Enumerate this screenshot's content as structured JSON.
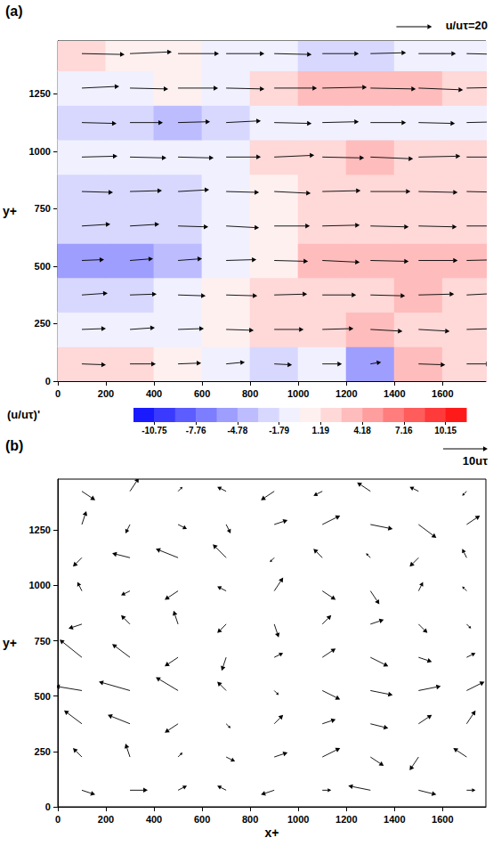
{
  "chart_data": [
    {
      "type": "quiver",
      "title": "(a)",
      "ylabel": "y+",
      "xlim": [
        0,
        1780
      ],
      "ylim": [
        0,
        1480
      ],
      "xticks": [
        0,
        200,
        400,
        600,
        800,
        1000,
        1200,
        1400,
        1600
      ],
      "yticks": [
        0,
        250,
        500,
        750,
        1000,
        1250
      ],
      "x": [
        100,
        300,
        500,
        700,
        900,
        1100,
        1300,
        1500,
        1700
      ],
      "y": [
        75,
        225,
        375,
        525,
        675,
        825,
        975,
        1125,
        1275,
        1425
      ],
      "u": [
        [
          13.5,
          14.5,
          13,
          10.5,
          10,
          11,
          6,
          15,
          13.5
        ],
        [
          13.5,
          14,
          14.5,
          15.5,
          16.5,
          17.5,
          18,
          17.5,
          16.5
        ],
        [
          14.5,
          15,
          15.5,
          17.5,
          18.5,
          19,
          19.5,
          20,
          19.5
        ],
        [
          12.5,
          13,
          13.5,
          17,
          19,
          21,
          21.5,
          22,
          21.5
        ],
        [
          16,
          16.5,
          17,
          18.5,
          20,
          21,
          21.5,
          21.5,
          21
        ],
        [
          17.5,
          18,
          17.5,
          18.5,
          20.5,
          21.5,
          22.5,
          22,
          21.5
        ],
        [
          20,
          20.5,
          20,
          19.5,
          22.5,
          23.5,
          24,
          23.5,
          23
        ],
        [
          19.5,
          18.5,
          18,
          19.5,
          21,
          20.5,
          20,
          20.5,
          21
        ],
        [
          21,
          21.5,
          22.5,
          21.5,
          24,
          25,
          25.5,
          25,
          24.5
        ],
        [
          24,
          23.5,
          23,
          21.5,
          21,
          20.5,
          20,
          21,
          21.5
        ]
      ],
      "v": [
        [
          -0.5,
          0,
          0.5,
          1,
          -0.5,
          0,
          1,
          -0.5,
          0
        ],
        [
          0.5,
          1,
          0.5,
          -0.5,
          0,
          0.5,
          -1,
          -1,
          0.5
        ],
        [
          1,
          0.5,
          -0.5,
          -0.5,
          0.5,
          0,
          -0.5,
          0.5,
          1
        ],
        [
          0.5,
          1,
          1,
          0.5,
          -0.5,
          -1,
          -0.5,
          0,
          0.5
        ],
        [
          1,
          1,
          -0.5,
          -1,
          0,
          0.5,
          -0.5,
          -0.5,
          0
        ],
        [
          -0.5,
          0.5,
          1,
          -0.5,
          -1,
          0.5,
          0,
          -0.5,
          -0.5
        ],
        [
          0.5,
          -0.5,
          -0.5,
          0,
          1,
          -0.5,
          -1,
          0.5,
          0
        ],
        [
          -0.5,
          0,
          0.5,
          1,
          -0.5,
          0.5,
          0,
          -0.5,
          0.5
        ],
        [
          1,
          -0.5,
          0,
          -0.5,
          0,
          0.5,
          -0.5,
          -1,
          0.5
        ],
        [
          -0.5,
          1,
          0,
          0,
          -0.5,
          0,
          0.5,
          0,
          -0.5
        ]
      ],
      "color": "#000000",
      "reference_vector": {
        "label": "u/uτ=20",
        "value": 20
      },
      "contour": {
        "label": "(u/uτ)'",
        "values": [
          [
            1.5,
            2.5,
            1.0,
            -1.5,
            -2.0,
            -1.0,
            -6.0,
            3.0,
            1.5
          ],
          [
            -1.5,
            -1.0,
            -0.5,
            0.5,
            1.5,
            2.5,
            3.0,
            2.5,
            1.5
          ],
          [
            -2.5,
            -2.0,
            -1.5,
            0.5,
            1.5,
            2.0,
            2.5,
            3.0,
            2.5
          ],
          [
            -5.5,
            -5.0,
            -4.5,
            -1.0,
            1.0,
            3.0,
            3.5,
            4.0,
            3.5
          ],
          [
            -3.0,
            -2.5,
            -2.0,
            -0.5,
            1.0,
            2.0,
            2.5,
            2.5,
            2.0
          ],
          [
            -2.5,
            -2.0,
            -2.5,
            -1.5,
            0.5,
            1.5,
            2.5,
            2.0,
            1.5
          ],
          [
            -1.0,
            -0.5,
            -1.0,
            -1.5,
            1.5,
            2.5,
            3.0,
            2.5,
            2.0
          ],
          [
            -2.0,
            -3.0,
            -3.5,
            -2.0,
            -0.5,
            -1.0,
            -1.5,
            -1.0,
            -0.5
          ],
          [
            -1.0,
            -0.5,
            0.5,
            -0.5,
            2.0,
            3.0,
            3.5,
            3.0,
            2.5
          ],
          [
            1.5,
            1.0,
            0.5,
            -1.0,
            -1.5,
            -2.0,
            -2.5,
            -1.5,
            -1.0
          ]
        ],
        "range": [
          -12.24,
          11.64
        ],
        "ticks": [
          -10.75,
          -7.76,
          -4.78,
          -1.79,
          1.19,
          4.18,
          7.16,
          10.15
        ],
        "colors": [
          "#1a1aff",
          "#3a3aff",
          "#5c5cff",
          "#7d7dff",
          "#9e9eff",
          "#bcbcff",
          "#d8d8ff",
          "#f0f0ff",
          "#fff0f0",
          "#ffd8d8",
          "#ffbcbc",
          "#ff9e9e",
          "#ff7d7d",
          "#ff5c5c",
          "#ff3a3a",
          "#ff1a1a"
        ]
      }
    },
    {
      "type": "quiver",
      "title": "(b)",
      "xlabel": "x+",
      "ylabel": "y+",
      "xlim": [
        0,
        1780
      ],
      "ylim": [
        0,
        1480
      ],
      "xticks": [
        0,
        200,
        400,
        600,
        800,
        1000,
        1200,
        1400,
        1600
      ],
      "yticks": [
        0,
        250,
        500,
        750,
        1000,
        1250
      ],
      "x": [
        100,
        300,
        500,
        700,
        900,
        1100,
        1300,
        1500,
        1700
      ],
      "y": [
        75,
        225,
        375,
        525,
        675,
        825,
        975,
        1125,
        1275,
        1425
      ],
      "u": [
        [
          3,
          4,
          2,
          -2,
          -3,
          2,
          -5,
          4,
          2
        ],
        [
          -2,
          -1,
          1,
          2,
          3,
          4,
          3,
          -2,
          -3
        ],
        [
          -4,
          -5,
          -3,
          1,
          2,
          3,
          4,
          3,
          2
        ],
        [
          -6,
          -7,
          -5,
          -2,
          1,
          4,
          5,
          5,
          4
        ],
        [
          -5,
          -4,
          -3,
          -1,
          2,
          3,
          4,
          3,
          2
        ],
        [
          -3,
          -2,
          -1,
          -2,
          1,
          2,
          3,
          2,
          1
        ],
        [
          -1,
          -2,
          -3,
          -2,
          2,
          3,
          2,
          1,
          -1
        ],
        [
          -2,
          -4,
          -5,
          -3,
          -1,
          -2,
          -1,
          -2,
          -1
        ],
        [
          1,
          -1,
          2,
          1,
          3,
          4,
          5,
          4,
          3
        ],
        [
          3,
          2,
          1,
          -2,
          -3,
          -2,
          -3,
          -2,
          -1
        ]
      ],
      "v": [
        [
          -1,
          0,
          1,
          1,
          -1,
          0,
          1,
          -1,
          0
        ],
        [
          2,
          3,
          1,
          -1,
          1,
          2,
          -2,
          -3,
          2
        ],
        [
          3,
          2,
          -2,
          -1,
          2,
          1,
          -1,
          2,
          3
        ],
        [
          1,
          2,
          3,
          2,
          -1,
          -2,
          -1,
          1,
          2
        ],
        [
          4,
          3,
          -2,
          -3,
          1,
          2,
          -2,
          -1,
          1
        ],
        [
          -1,
          2,
          3,
          -2,
          -3,
          2,
          1,
          -2,
          -1
        ],
        [
          2,
          -1,
          -2,
          1,
          3,
          -2,
          -3,
          2,
          1
        ],
        [
          -2,
          1,
          2,
          3,
          -1,
          2,
          1,
          -2,
          2
        ],
        [
          3,
          -2,
          -1,
          -2,
          1,
          2,
          -1,
          -3,
          2
        ],
        [
          -2,
          3,
          1,
          1,
          -2,
          -1,
          2,
          1,
          -1
        ]
      ],
      "color": "#000000",
      "reference_vector": {
        "label": "10uτ",
        "value": 10
      }
    }
  ]
}
